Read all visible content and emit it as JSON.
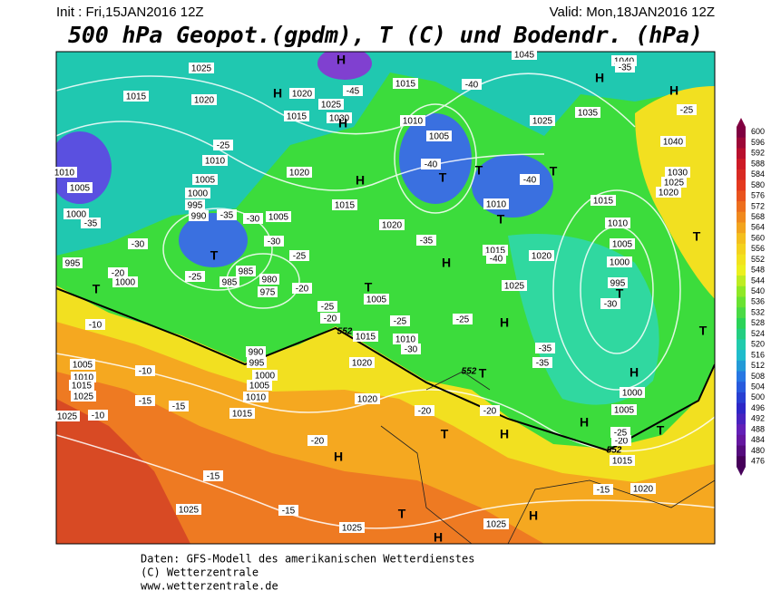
{
  "header": {
    "init": "Init : Fri,15JAN2016 12Z",
    "valid": "Valid: Mon,18JAN2016 12Z",
    "title": "500 hPa Geopot.(gpdm), T (C) und Bodendr. (hPa)"
  },
  "legend": {
    "levels": [
      600,
      596,
      592,
      588,
      584,
      580,
      576,
      572,
      568,
      564,
      560,
      556,
      552,
      548,
      544,
      540,
      536,
      532,
      528,
      524,
      520,
      516,
      512,
      508,
      504,
      500,
      496,
      492,
      488,
      484,
      480,
      476
    ]
  },
  "map": {
    "pressure_labels": [
      "1025",
      "1015",
      "1020",
      "1020",
      "1025",
      "1015",
      "1030",
      "1015",
      "1010",
      "1005",
      "1035",
      "1025",
      "1040",
      "1030",
      "1025",
      "1020",
      "1010",
      "1005",
      "1000",
      "995",
      "990",
      "1005",
      "1020",
      "1015",
      "1020",
      "1010",
      "1015",
      "1020",
      "1015",
      "1010",
      "1005",
      "1000",
      "995",
      "1025",
      "1010",
      "1005",
      "1000",
      "995",
      "1000",
      "985",
      "980",
      "975",
      "985",
      "1005",
      "1015",
      "1010",
      "1020",
      "990",
      "995",
      "1000",
      "1005",
      "1010",
      "1015",
      "1005",
      "1010",
      "1015",
      "1025",
      "1020",
      "1025",
      "1020",
      "1015",
      "1005",
      "1000",
      "1025",
      "1025",
      "1025",
      "1045",
      "1040"
    ],
    "temperature_labels": [
      "-35",
      "-40",
      "-45",
      "-25",
      "-25",
      "-35",
      "-30",
      "-20",
      "-25",
      "-35",
      "-30",
      "-30",
      "-25",
      "-20",
      "-25",
      "-20",
      "-25",
      "-30",
      "-25",
      "-35",
      "-40",
      "-35",
      "-35",
      "-30",
      "-10",
      "-10",
      "-15",
      "-15",
      "-10",
      "-20",
      "-20",
      "-20",
      "-15",
      "-15",
      "-15",
      "-20",
      "-25",
      "-40",
      "-40"
    ],
    "centers": [
      "H",
      "H",
      "H",
      "H",
      "H",
      "H",
      "T",
      "T",
      "T",
      "T",
      "T",
      "T",
      "T",
      "H",
      "T",
      "H",
      "T",
      "T",
      "H",
      "T",
      "H",
      "T",
      "H",
      "T",
      "H",
      "H",
      "T",
      "H"
    ],
    "contour_labels": [
      "552",
      "552",
      "552"
    ]
  },
  "footer": [
    "Daten: GFS-Modell des amerikanischen Wetterdienstes",
    "(C) Wetterzentrale",
    "www.wetterzentrale.de"
  ]
}
